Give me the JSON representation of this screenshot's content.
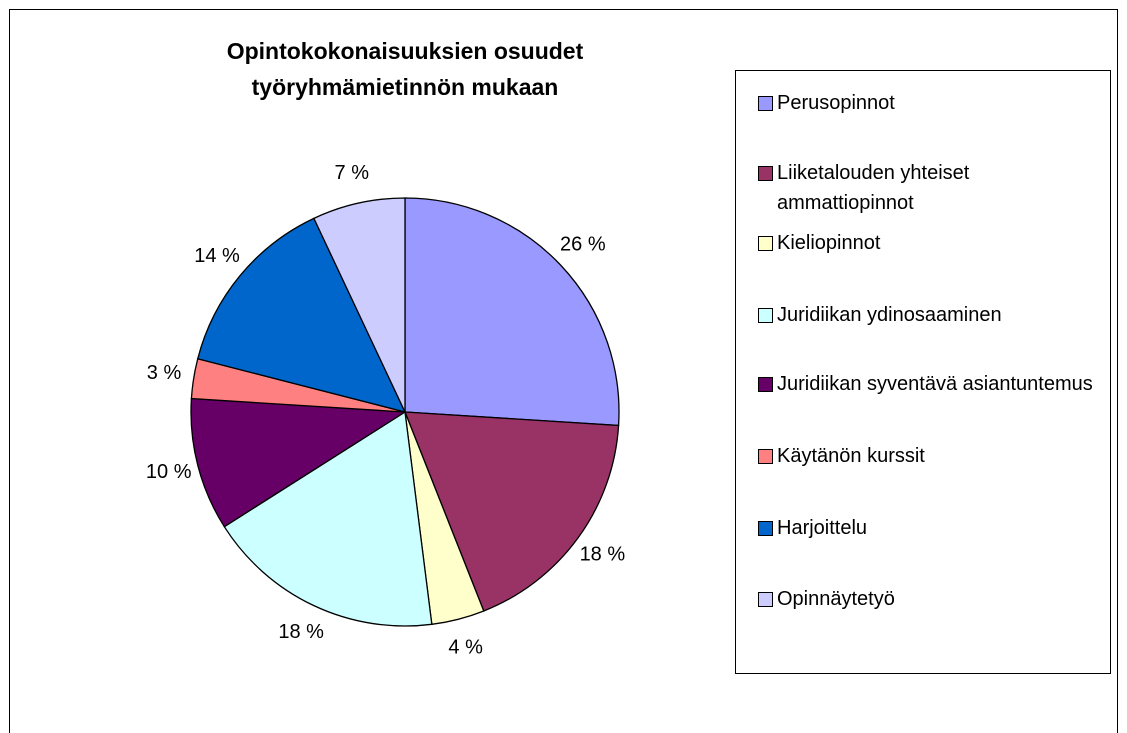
{
  "chart_data": {
    "type": "pie",
    "title": "Opintokokonaisuuksien osuudet työryhmämietinnön mukaan",
    "categories": [
      "Perusopinnot",
      "Liiketalouden yhteiset ammattiopinnot",
      "Kieliopinnot",
      "Juridiikan ydinosaaminen",
      "Juridiikan syventävä asiantuntemus",
      "Käytänön kurssit",
      "Harjoittelu",
      "Opinnäytetyö"
    ],
    "values": [
      26,
      18,
      4,
      18,
      10,
      3,
      14,
      7
    ],
    "value_labels": [
      "26 %",
      "18 %",
      "4 %",
      "18 %",
      "10 %",
      "3 %",
      "14 %",
      "7 %"
    ],
    "colors": [
      "#9999ff",
      "#993366",
      "#ffffcc",
      "#ccffff",
      "#660066",
      "#ff8080",
      "#0066cc",
      "#ccccff"
    ],
    "legend": "right"
  }
}
